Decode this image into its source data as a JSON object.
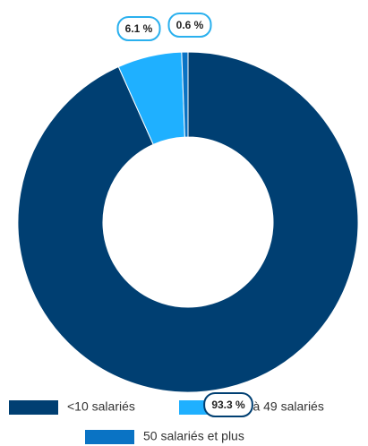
{
  "chart_data": {
    "type": "donut",
    "categories": [
      "<10 salariés",
      "10 à 49 salariés",
      "50 salariés et plus"
    ],
    "values": [
      93.3,
      6.1,
      0.6
    ],
    "value_labels": [
      "93.3 %",
      "6.1 %",
      "0.6 %"
    ],
    "colors": [
      "#003f72",
      "#1fb0ff",
      "#0a73c4"
    ],
    "legend": "bottom"
  }
}
